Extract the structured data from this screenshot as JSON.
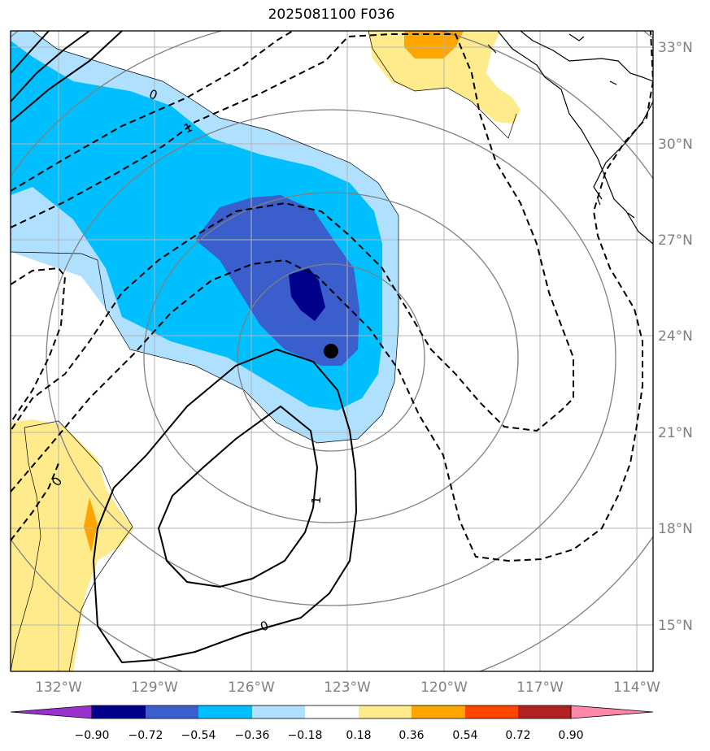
{
  "title": "2025081100 F036",
  "map": {
    "lon_ticks": [
      "132°W",
      "129°W",
      "126°W",
      "123°W",
      "120°W",
      "117°W",
      "114°W"
    ],
    "lat_ticks": [
      "33°N",
      "30°N",
      "27°N",
      "24°N",
      "21°N",
      "18°N",
      "15°N"
    ],
    "contour_labels": [
      "0",
      "1",
      "0",
      "1",
      "0"
    ],
    "colors": {
      "light_blue": "#b0e0ff",
      "deep_sky_blue": "#00bfff",
      "royal_blue": "#3a5fcd",
      "navy": "#00008b",
      "light_yellow": "#ffeb8b",
      "orange": "#ffa500",
      "purple": "#9932cc",
      "red_orange": "#ff4500",
      "firebrick": "#b22222",
      "pink": "#ff88aa"
    }
  },
  "colorbar": {
    "labels": [
      "−0.90",
      "−0.72",
      "−0.54",
      "−0.36",
      "−0.18",
      "0.18",
      "0.36",
      "0.54",
      "0.72",
      "0.90"
    ],
    "colors": [
      "#9932cc",
      "#00008b",
      "#3a5fcd",
      "#00bfff",
      "#b0e0ff",
      "#ffffff",
      "#ffeb8b",
      "#ffa500",
      "#ff4500",
      "#b22222",
      "#ff88aa"
    ]
  }
}
